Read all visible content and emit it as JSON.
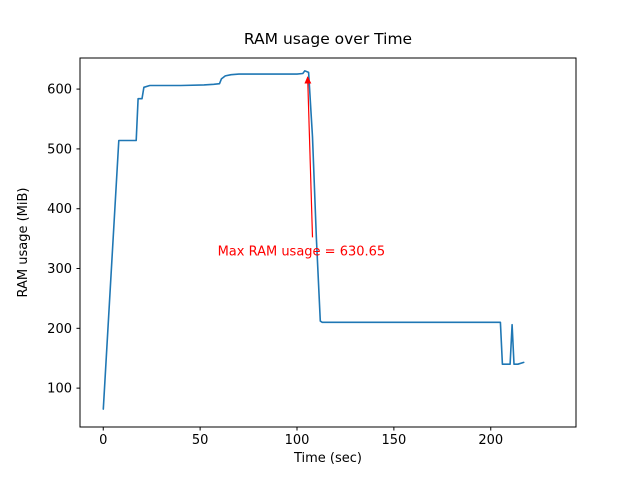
{
  "chart_data": {
    "type": "line",
    "title": "RAM usage over Time",
    "xlabel": "Time (sec)",
    "ylabel": "RAM usage (MiB)",
    "xlim": [
      -12,
      244
    ],
    "ylim": [
      35,
      652
    ],
    "xticks": [
      0,
      50,
      100,
      150,
      200
    ],
    "yticks": [
      100,
      200,
      300,
      400,
      500,
      600
    ],
    "grid": false,
    "legend": "none",
    "line_color": "#1f77b4",
    "series": [
      {
        "name": "RAM usage",
        "x": [
          0,
          8,
          17,
          18,
          20,
          21,
          24,
          40,
          52,
          57,
          60,
          61,
          63,
          66,
          70,
          95,
          100,
          103,
          104,
          106,
          108,
          110,
          112,
          113,
          150,
          205,
          206,
          210,
          211,
          212,
          214,
          217
        ],
        "y": [
          65,
          514,
          514,
          584,
          584,
          603,
          606,
          606,
          607,
          608,
          609,
          617,
          622,
          624,
          625,
          625,
          625,
          626,
          630.65,
          628,
          520,
          350,
          212,
          210,
          210,
          210,
          140,
          140,
          206,
          140,
          140,
          143
        ]
      }
    ],
    "annotation": {
      "text": "Max RAM usage = 630.65",
      "color": "#ff0000",
      "text_pos": [
        59,
        322
      ],
      "arrow_from": [
        108,
        352
      ],
      "arrow_to": [
        105.5,
        620
      ]
    }
  }
}
